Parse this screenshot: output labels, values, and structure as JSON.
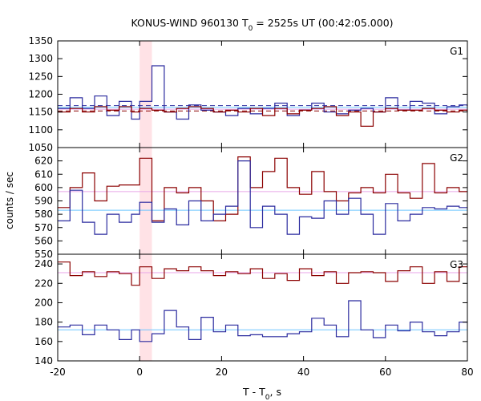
{
  "title_main": "KONUS-WIND 960130 T",
  "title_sub": "0",
  "title_rest": " = 2525s UT (00:42:05.000)",
  "ylabel": "counts / sec",
  "xlabel_main": "T - T",
  "xlabel_sub": "0",
  "xlabel_rest": ", s",
  "colors": {
    "red": "#8b0000",
    "blue": "#2b2b9f",
    "light_blue": "#6ec6ff",
    "pink": "#e8a6e8",
    "band": "#ffe2e6"
  },
  "chart_data": [
    {
      "type": "line",
      "name": "G1",
      "xlim": [
        -20,
        80
      ],
      "ylim": [
        1050,
        1350
      ],
      "yticks": [
        1050,
        1100,
        1150,
        1200,
        1250,
        1300,
        1350
      ],
      "highlight_band": [
        0,
        3
      ],
      "series": [
        {
          "color": "blue",
          "bin_edges": [
            -20,
            -17,
            -14,
            -11,
            -8,
            -5,
            -2,
            0,
            3,
            6,
            9,
            12,
            15,
            18,
            21,
            24,
            27,
            30,
            33,
            36,
            39,
            42,
            45,
            48,
            51,
            54,
            57,
            60,
            63,
            66,
            69,
            72,
            75,
            78,
            80
          ],
          "values": [
            1160,
            1190,
            1160,
            1195,
            1140,
            1180,
            1130,
            1180,
            1280,
            1150,
            1130,
            1170,
            1155,
            1150,
            1140,
            1160,
            1145,
            1160,
            1175,
            1140,
            1155,
            1175,
            1150,
            1145,
            1155,
            1160,
            1150,
            1190,
            1155,
            1180,
            1175,
            1145,
            1165,
            1170
          ]
        },
        {
          "color": "red",
          "bin_edges": [
            -20,
            -17,
            -14,
            -11,
            -8,
            -5,
            -2,
            0,
            3,
            6,
            9,
            12,
            15,
            18,
            21,
            24,
            27,
            30,
            33,
            36,
            39,
            42,
            45,
            48,
            51,
            54,
            57,
            60,
            63,
            66,
            69,
            72,
            75,
            78,
            80
          ],
          "values": [
            1150,
            1160,
            1150,
            1165,
            1155,
            1165,
            1150,
            1160,
            1155,
            1150,
            1160,
            1165,
            1160,
            1150,
            1155,
            1150,
            1160,
            1140,
            1160,
            1145,
            1155,
            1160,
            1165,
            1140,
            1150,
            1110,
            1150,
            1160,
            1155,
            1155,
            1160,
            1155,
            1150,
            1155
          ]
        }
      ],
      "reference_lines": [
        {
          "color": "blue",
          "value": 1168,
          "dashed": true
        },
        {
          "color": "red",
          "value": 1153,
          "dashed": true
        },
        {
          "color": "light_blue",
          "value": 1163,
          "dashed": false
        },
        {
          "color": "pink",
          "value": 1158,
          "dashed": false
        }
      ]
    },
    {
      "type": "line",
      "name": "G2",
      "xlim": [
        -20,
        80
      ],
      "ylim": [
        550,
        630
      ],
      "yticks": [
        550,
        560,
        570,
        580,
        590,
        600,
        610,
        620
      ],
      "highlight_band": [
        0,
        3
      ],
      "series": [
        {
          "color": "red",
          "bin_edges": [
            -20,
            -17,
            -14,
            -11,
            -8,
            -5,
            -2,
            0,
            3,
            6,
            9,
            12,
            15,
            18,
            21,
            24,
            27,
            30,
            33,
            36,
            39,
            42,
            45,
            48,
            51,
            54,
            57,
            60,
            63,
            66,
            69,
            72,
            75,
            78,
            80
          ],
          "values": [
            585,
            600,
            611,
            590,
            601,
            602,
            602,
            622,
            575,
            600,
            596,
            600,
            590,
            575,
            580,
            623,
            600,
            612,
            622,
            600,
            595,
            612,
            597,
            590,
            596,
            600,
            596,
            610,
            596,
            592,
            618,
            596,
            600,
            597
          ]
        },
        {
          "color": "blue",
          "bin_edges": [
            -20,
            -17,
            -14,
            -11,
            -8,
            -5,
            -2,
            0,
            3,
            6,
            9,
            12,
            15,
            18,
            21,
            24,
            27,
            30,
            33,
            36,
            39,
            42,
            45,
            48,
            51,
            54,
            57,
            60,
            63,
            66,
            69,
            72,
            75,
            78,
            80
          ],
          "values": [
            575,
            598,
            574,
            565,
            580,
            574,
            580,
            589,
            574,
            584,
            572,
            590,
            575,
            580,
            586,
            620,
            570,
            586,
            580,
            565,
            578,
            577,
            590,
            580,
            592,
            580,
            565,
            588,
            575,
            580,
            585,
            584,
            586,
            585
          ]
        }
      ],
      "reference_lines": [
        {
          "color": "pink",
          "value": 597,
          "dashed": false
        },
        {
          "color": "light_blue",
          "value": 583,
          "dashed": false
        }
      ]
    },
    {
      "type": "line",
      "name": "G3",
      "xlim": [
        -20,
        80
      ],
      "ylim": [
        140,
        250
      ],
      "yticks": [
        140,
        160,
        180,
        200,
        220,
        240
      ],
      "xticks": [
        -20,
        0,
        20,
        40,
        60,
        80
      ],
      "highlight_band": [
        0,
        3
      ],
      "series": [
        {
          "color": "red",
          "bin_edges": [
            -20,
            -17,
            -14,
            -11,
            -8,
            -5,
            -2,
            0,
            3,
            6,
            9,
            12,
            15,
            18,
            21,
            24,
            27,
            30,
            33,
            36,
            39,
            42,
            45,
            48,
            51,
            54,
            57,
            60,
            63,
            66,
            69,
            72,
            75,
            78,
            80
          ],
          "values": [
            242,
            228,
            232,
            227,
            232,
            230,
            218,
            237,
            225,
            235,
            233,
            237,
            233,
            228,
            232,
            230,
            235,
            225,
            230,
            223,
            235,
            228,
            232,
            220,
            231,
            232,
            231,
            222,
            233,
            237,
            220,
            232,
            222,
            237
          ]
        },
        {
          "color": "blue",
          "bin_edges": [
            -20,
            -17,
            -14,
            -11,
            -8,
            -5,
            -2,
            0,
            3,
            6,
            9,
            12,
            15,
            18,
            21,
            24,
            27,
            30,
            33,
            36,
            39,
            42,
            45,
            48,
            51,
            54,
            57,
            60,
            63,
            66,
            69,
            72,
            75,
            78,
            80
          ],
          "values": [
            175,
            177,
            167,
            177,
            172,
            162,
            172,
            160,
            168,
            192,
            175,
            162,
            185,
            170,
            177,
            166,
            167,
            165,
            165,
            168,
            170,
            184,
            177,
            165,
            202,
            172,
            164,
            177,
            171,
            180,
            170,
            166,
            170,
            180
          ]
        }
      ],
      "reference_lines": [
        {
          "color": "pink",
          "value": 231,
          "dashed": false
        },
        {
          "color": "light_blue",
          "value": 172,
          "dashed": false
        }
      ]
    }
  ]
}
